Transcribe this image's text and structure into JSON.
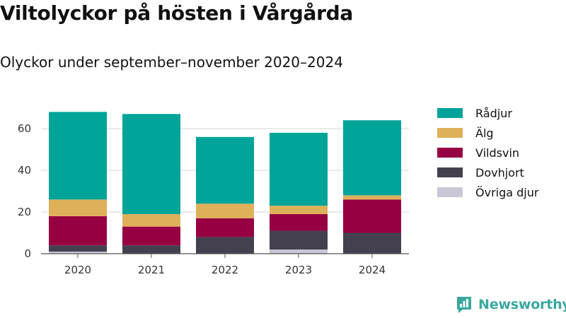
{
  "title": "Viltolyckor på hösten i Vårgårda",
  "subtitle": "Olyckor under september–november 2020–2024",
  "brand": "Newsworthy",
  "chart_data": {
    "type": "bar",
    "stacked": true,
    "categories": [
      "2020",
      "2021",
      "2022",
      "2023",
      "2024"
    ],
    "series": [
      {
        "name": "Övriga djur",
        "color": "#c9c7d6",
        "values": [
          1,
          0,
          0,
          2,
          0
        ]
      },
      {
        "name": "Dovhjort",
        "color": "#44404f",
        "values": [
          3,
          4,
          8,
          9,
          10
        ]
      },
      {
        "name": "Vildsvin",
        "color": "#960042",
        "values": [
          14,
          9,
          9,
          8,
          16
        ]
      },
      {
        "name": "Älg",
        "color": "#dfb05a",
        "values": [
          8,
          6,
          7,
          4,
          2
        ]
      },
      {
        "name": "Rådjur",
        "color": "#00a499",
        "values": [
          42,
          48,
          32,
          35,
          36
        ]
      }
    ],
    "legend": [
      "Rådjur",
      "Älg",
      "Vildsvin",
      "Dovhjort",
      "Övriga djur"
    ],
    "y_ticks": [
      "0",
      "20",
      "40",
      "60"
    ],
    "ylim": [
      0,
      75
    ],
    "grid": true,
    "legend_position": "right"
  }
}
